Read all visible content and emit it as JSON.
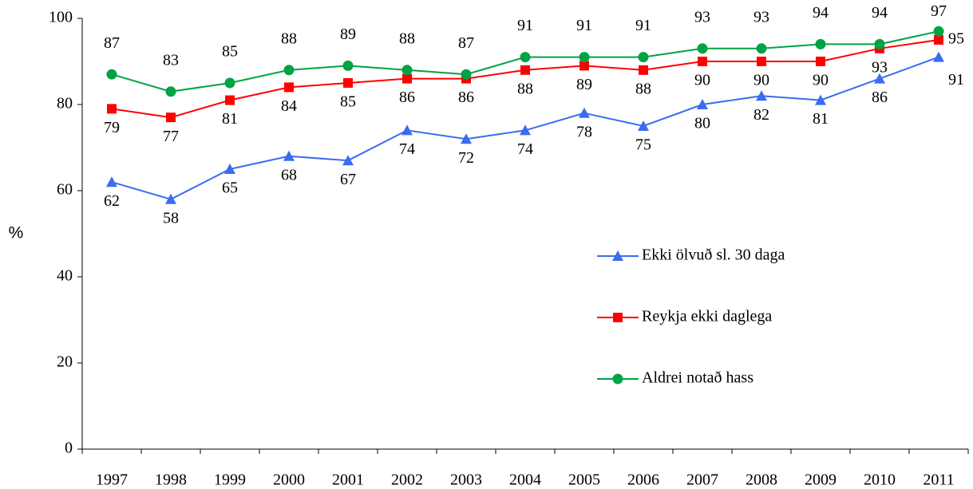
{
  "chart_data": {
    "type": "line",
    "y_label": "%",
    "categories": [
      "1997",
      "1998",
      "1999",
      "2000",
      "2001",
      "2002",
      "2003",
      "2004",
      "2005",
      "2006",
      "2007",
      "2008",
      "2009",
      "2010",
      "2011"
    ],
    "series": [
      {
        "name": "Ekki ölvuð sl. 30 daga",
        "color": "#3b6cf0",
        "marker": "triangle",
        "values": [
          62,
          58,
          65,
          68,
          67,
          74,
          72,
          74,
          78,
          75,
          80,
          82,
          81,
          86,
          91
        ]
      },
      {
        "name": "Reykja ekki daglega",
        "color": "#ff0000",
        "marker": "square",
        "values": [
          79,
          77,
          81,
          84,
          85,
          86,
          86,
          88,
          89,
          88,
          90,
          90,
          90,
          93,
          95
        ]
      },
      {
        "name": "Aldrei notað hass",
        "color": "#00a344",
        "marker": "circle",
        "values": [
          87,
          83,
          85,
          88,
          89,
          88,
          87,
          91,
          91,
          91,
          93,
          93,
          94,
          94,
          97
        ]
      }
    ],
    "ylim": [
      0,
      100
    ],
    "yticks": [
      0,
      20,
      40,
      60,
      80,
      100
    ],
    "grid": false,
    "legend": "right"
  }
}
